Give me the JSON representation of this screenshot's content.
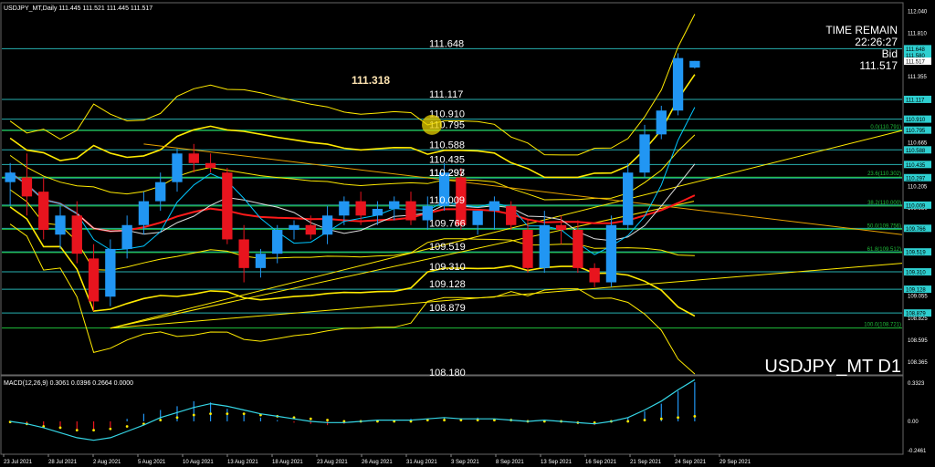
{
  "header": {
    "symbol_info": "USDJPY_MT,Daily  111.445 111.521 111.445 111.517",
    "time_remain_label": "TIME REMAIN",
    "time_remain_value": "22:26:27",
    "bid_label": "Bid",
    "bid_value": "111.517",
    "watermark": "USDJPY_MT D1"
  },
  "macd_header": "MACD(12,26,9) 0.3061 0.0396 0.2664 0.0000",
  "colors": {
    "background": "#000000",
    "bull": "#2196f3",
    "bear": "#e8141e",
    "level_line": "#2ecfd0",
    "fib_line": "#1fbf3a",
    "bands": "#ffea00",
    "ma_red": "#ff1a1a",
    "ma_white": "#dddddd",
    "ma_cyan": "#00c6ff"
  },
  "chart_data": [
    {
      "type": "candlestick",
      "title": "",
      "ylim": [
        108.24,
        112.12
      ],
      "y_ticks": [
        "112.040",
        "111.810",
        "111.580",
        "111.355",
        "111.125",
        "110.895",
        "110.665",
        "110.435",
        "110.205",
        "109.980",
        "109.750",
        "109.520",
        "109.290",
        "109.055",
        "108.825",
        "108.595",
        "108.365"
      ],
      "x_ticks": [
        "23 Jul 2021",
        "28 Jul 2021",
        "2 Aug 2021",
        "5 Aug 2021",
        "10 Aug 2021",
        "13 Aug 2021",
        "18 Aug 2021",
        "23 Aug 2021",
        "26 Aug 2021",
        "31 Aug 2021",
        "3 Sep 2021",
        "8 Sep 2021",
        "13 Sep 2021",
        "16 Sep 2021",
        "21 Sep 2021",
        "24 Sep 2021",
        "29 Sep 2021"
      ],
      "candles": [
        {
          "o": 110.25,
          "h": 110.45,
          "l": 110.0,
          "c": 110.35
        },
        {
          "o": 110.3,
          "h": 110.55,
          "l": 109.9,
          "c": 110.1
        },
        {
          "o": 110.15,
          "h": 110.3,
          "l": 109.65,
          "c": 109.75
        },
        {
          "o": 109.7,
          "h": 110.0,
          "l": 109.55,
          "c": 109.9
        },
        {
          "o": 109.9,
          "h": 110.05,
          "l": 109.4,
          "c": 109.5
        },
        {
          "o": 109.45,
          "h": 109.6,
          "l": 108.9,
          "c": 109.0
        },
        {
          "o": 109.05,
          "h": 109.65,
          "l": 108.95,
          "c": 109.55
        },
        {
          "o": 109.55,
          "h": 109.9,
          "l": 109.45,
          "c": 109.8
        },
        {
          "o": 109.8,
          "h": 110.15,
          "l": 109.7,
          "c": 110.05
        },
        {
          "o": 110.05,
          "h": 110.35,
          "l": 109.95,
          "c": 110.25
        },
        {
          "o": 110.25,
          "h": 110.6,
          "l": 110.15,
          "c": 110.55
        },
        {
          "o": 110.55,
          "h": 110.65,
          "l": 110.35,
          "c": 110.45
        },
        {
          "o": 110.45,
          "h": 110.55,
          "l": 110.35,
          "c": 110.4
        },
        {
          "o": 110.35,
          "h": 110.4,
          "l": 109.6,
          "c": 109.65
        },
        {
          "o": 109.65,
          "h": 109.8,
          "l": 109.2,
          "c": 109.35
        },
        {
          "o": 109.35,
          "h": 109.55,
          "l": 109.25,
          "c": 109.5
        },
        {
          "o": 109.5,
          "h": 109.8,
          "l": 109.4,
          "c": 109.75
        },
        {
          "o": 109.75,
          "h": 109.85,
          "l": 109.65,
          "c": 109.8
        },
        {
          "o": 109.8,
          "h": 109.9,
          "l": 109.65,
          "c": 109.7
        },
        {
          "o": 109.7,
          "h": 110.0,
          "l": 109.6,
          "c": 109.9
        },
        {
          "o": 109.9,
          "h": 110.1,
          "l": 109.8,
          "c": 110.05
        },
        {
          "o": 110.05,
          "h": 110.15,
          "l": 109.8,
          "c": 109.9
        },
        {
          "o": 109.9,
          "h": 110.05,
          "l": 109.8,
          "c": 109.97
        },
        {
          "o": 109.97,
          "h": 110.1,
          "l": 109.85,
          "c": 110.05
        },
        {
          "o": 110.05,
          "h": 110.15,
          "l": 109.8,
          "c": 109.85
        },
        {
          "o": 109.85,
          "h": 110.1,
          "l": 109.75,
          "c": 110.0
        },
        {
          "o": 110.0,
          "h": 110.45,
          "l": 109.95,
          "c": 110.35
        },
        {
          "o": 110.3,
          "h": 110.4,
          "l": 109.75,
          "c": 109.8
        },
        {
          "o": 109.8,
          "h": 109.95,
          "l": 109.7,
          "c": 109.95
        },
        {
          "o": 109.95,
          "h": 110.1,
          "l": 109.75,
          "c": 110.05
        },
        {
          "o": 110.0,
          "h": 110.05,
          "l": 109.75,
          "c": 109.8
        },
        {
          "o": 109.75,
          "h": 109.85,
          "l": 109.3,
          "c": 109.35
        },
        {
          "o": 109.35,
          "h": 109.95,
          "l": 109.3,
          "c": 109.8
        },
        {
          "o": 109.8,
          "h": 109.9,
          "l": 109.6,
          "c": 109.75
        },
        {
          "o": 109.75,
          "h": 109.85,
          "l": 109.3,
          "c": 109.35
        },
        {
          "o": 109.35,
          "h": 109.4,
          "l": 109.15,
          "c": 109.2
        },
        {
          "o": 109.2,
          "h": 109.9,
          "l": 109.15,
          "c": 109.8
        },
        {
          "o": 109.8,
          "h": 110.45,
          "l": 109.75,
          "c": 110.35
        },
        {
          "o": 110.35,
          "h": 110.85,
          "l": 110.3,
          "c": 110.75
        },
        {
          "o": 110.75,
          "h": 111.05,
          "l": 110.7,
          "c": 111.0
        },
        {
          "o": 111.0,
          "h": 111.6,
          "l": 110.95,
          "c": 111.55
        },
        {
          "o": 111.45,
          "h": 111.52,
          "l": 111.44,
          "c": 111.52
        }
      ],
      "h_levels": [
        "111.648",
        "111.117",
        "110.910",
        "110.795",
        "110.588",
        "110.435",
        "110.297",
        "110.293",
        "110.009",
        "109.766",
        "109.519",
        "109.310",
        "109.128",
        "108.879",
        "108.180"
      ],
      "marker_level": "111.318",
      "fib_levels": [
        {
          "label": "0.0(110.791)",
          "value": 110.791
        },
        {
          "label": "23.6(110.302)",
          "value": 110.302
        },
        {
          "label": "38.2(110.000)",
          "value": 110.0
        },
        {
          "label": "50.0(109.756)",
          "value": 109.756
        },
        {
          "label": "61.8(109.512)",
          "value": 109.512
        },
        {
          "label": "100.0(108.721)",
          "value": 108.721
        }
      ],
      "right_level_tags": [
        "111.648",
        "111.580",
        "111.517",
        "111.117",
        "110.910",
        "110.795",
        "110.588",
        "110.435",
        "110.297",
        "110.009",
        "109.766",
        "109.519",
        "109.310",
        "109.128",
        "108.879"
      ]
    },
    {
      "type": "macd_histogram",
      "title": "",
      "y_ticks": [
        "0.3323",
        "0.00",
        "-0.2461"
      ],
      "ylim": [
        -0.2461,
        0.3323
      ],
      "histogram": [
        -0.01,
        -0.02,
        -0.04,
        -0.06,
        -0.08,
        -0.07,
        -0.05,
        0.02,
        0.06,
        0.09,
        0.12,
        0.16,
        0.15,
        0.1,
        0.06,
        0.03,
        0.01,
        -0.01,
        -0.02,
        -0.03,
        -0.02,
        -0.01,
        0.0,
        0.01,
        0.02,
        0.02,
        0.03,
        0.02,
        0.03,
        0.02,
        0.01,
        -0.01,
        0.0,
        -0.01,
        -0.02,
        -0.03,
        -0.01,
        0.03,
        0.08,
        0.14,
        0.24,
        0.31
      ],
      "signal": [
        -0.005,
        -0.02,
        -0.04,
        -0.05,
        -0.07,
        -0.07,
        -0.06,
        -0.04,
        -0.02,
        0.01,
        0.03,
        0.05,
        0.06,
        0.06,
        0.06,
        0.05,
        0.04,
        0.03,
        0.02,
        0.01,
        0.0,
        0.0,
        0.0,
        0.0,
        0.0,
        0.01,
        0.01,
        0.01,
        0.01,
        0.01,
        0.01,
        0.0,
        0.0,
        0.0,
        -0.01,
        -0.01,
        0.0,
        0.0,
        0.01,
        0.02,
        0.03,
        0.04
      ],
      "macd_line": [
        0.0,
        -0.02,
        -0.05,
        -0.09,
        -0.13,
        -0.15,
        -0.13,
        -0.08,
        -0.03,
        0.03,
        0.07,
        0.11,
        0.14,
        0.12,
        0.09,
        0.06,
        0.04,
        0.02,
        0.0,
        -0.01,
        -0.01,
        0.0,
        0.01,
        0.01,
        0.01,
        0.02,
        0.03,
        0.02,
        0.02,
        0.02,
        0.01,
        0.0,
        0.01,
        0.0,
        -0.01,
        -0.02,
        0.0,
        0.03,
        0.09,
        0.16,
        0.25,
        0.33
      ]
    }
  ]
}
